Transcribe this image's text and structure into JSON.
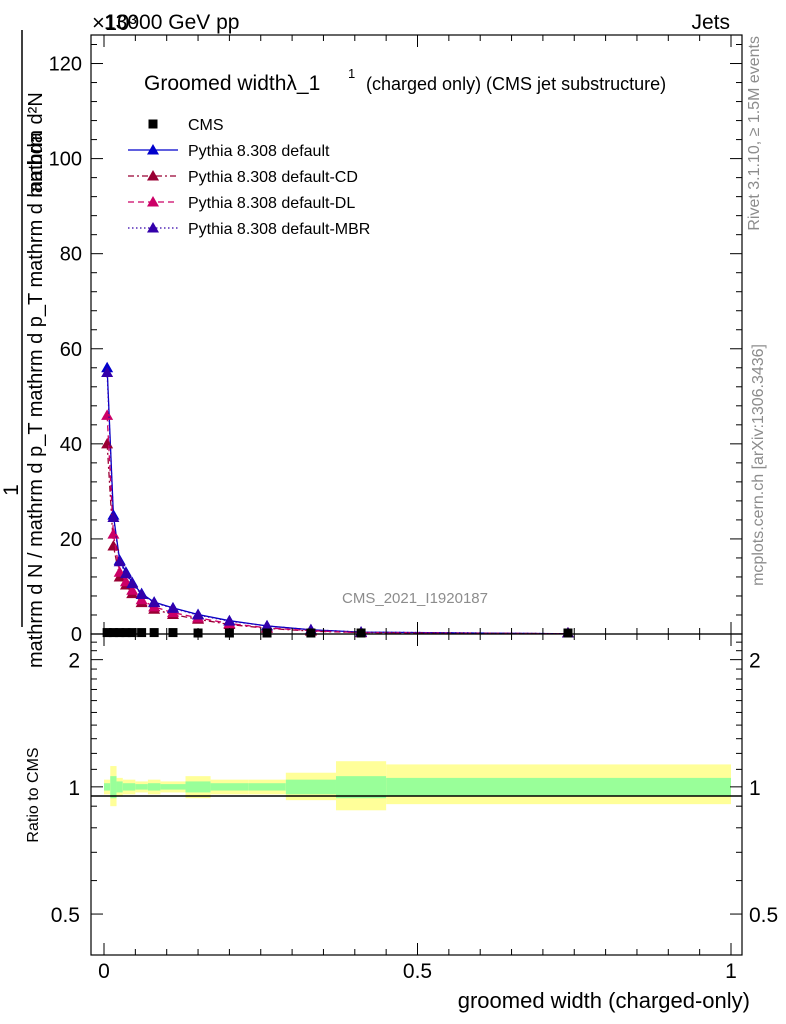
{
  "header": {
    "energy_label": "13000 GeV pp",
    "category_label": "Jets",
    "exponent_label": "×10³"
  },
  "side_text": {
    "rivet_label": "Rivet 3.1.10, ≥ 1.5M events",
    "mcplots_label": "mcplots.cern.ch [arXiv:1306.3436]"
  },
  "colors": {
    "data": "#000000",
    "default": "#0000cc",
    "default_cd": "#990033",
    "default_dl": "#cc0066",
    "default_mbr": "#3300aa",
    "band_stat": "#99ff99",
    "band_total": "#ffff99"
  },
  "chart_data": [
    {
      "type": "line",
      "title": "Groomed widthλ_1¹ (charged only) (CMS jet substructure)",
      "title_main": "Groomed widthλ_1",
      "title_sup": "1",
      "title_suffix": "(charged only) (CMS jet substructure)",
      "analysis_label": "CMS_2021_I1920187",
      "ylabel_numerator": "mathrm d²N",
      "ylabel_denominator": "mathrm d N / mathrm d p_T mathrm d p_T mathrm d lambda",
      "ylabel_prefix": "1",
      "xlim": [
        0,
        1
      ],
      "ylim": [
        0,
        126
      ],
      "yticks": [
        0,
        20,
        40,
        60,
        80,
        100,
        120
      ],
      "grid": false,
      "legend_position": "top-left",
      "series": [
        {
          "name": "CMS",
          "style": "data",
          "x": [
            0.005,
            0.015,
            0.025,
            0.035,
            0.045,
            0.06,
            0.08,
            0.11,
            0.15,
            0.2,
            0.26,
            0.33,
            0.41,
            0.74
          ],
          "y": [
            0.3,
            0.3,
            0.3,
            0.3,
            0.3,
            0.3,
            0.3,
            0.3,
            0.2,
            0.2,
            0.1,
            0.1,
            0.05,
            0.2
          ]
        },
        {
          "name": "Pythia 8.308 default",
          "style": "solid",
          "x": [
            0.005,
            0.015,
            0.025,
            0.035,
            0.045,
            0.06,
            0.08,
            0.11,
            0.15,
            0.2,
            0.26,
            0.33,
            0.41,
            0.74
          ],
          "y": [
            56,
            25,
            15.5,
            13,
            10.8,
            8.5,
            6.7,
            5.5,
            4.1,
            2.8,
            1.7,
            0.9,
            0.4,
            0.05
          ]
        },
        {
          "name": "Pythia 8.308 default-CD",
          "style": "dashdot",
          "x": [
            0.005,
            0.015,
            0.025,
            0.035,
            0.045,
            0.06,
            0.08,
            0.11,
            0.15,
            0.2,
            0.26,
            0.33,
            0.41,
            0.74
          ],
          "y": [
            40,
            18.5,
            12,
            10.3,
            8.5,
            6.6,
            5.2,
            4.1,
            3.1,
            2.0,
            1.2,
            0.6,
            0.3,
            0.05
          ]
        },
        {
          "name": "Pythia 8.308 default-DL",
          "style": "dashed",
          "x": [
            0.005,
            0.015,
            0.025,
            0.035,
            0.045,
            0.06,
            0.08,
            0.11,
            0.15,
            0.2,
            0.26,
            0.33,
            0.41,
            0.74
          ],
          "y": [
            46,
            21,
            13,
            11,
            9.2,
            7.2,
            5.7,
            4.5,
            3.4,
            2.2,
            1.3,
            0.7,
            0.3,
            0.05
          ]
        },
        {
          "name": "Pythia 8.308 default-MBR",
          "style": "dotted",
          "x": [
            0.005,
            0.015,
            0.025,
            0.035,
            0.045,
            0.06,
            0.08,
            0.11,
            0.15,
            0.2,
            0.26,
            0.33,
            0.41,
            0.74
          ],
          "y": [
            55,
            24.5,
            15.2,
            12.7,
            10.6,
            8.3,
            6.6,
            5.4,
            4.0,
            2.7,
            1.7,
            0.9,
            0.4,
            0.05
          ]
        }
      ]
    },
    {
      "type": "area",
      "ylabel": "Ratio to CMS",
      "xlabel": "groomed width (charged-only)",
      "xlim": [
        0,
        1
      ],
      "ylim": [
        0.4,
        2.3
      ],
      "yscale": "log",
      "yticks": [
        0.5,
        1,
        2
      ],
      "xticks": [
        0,
        0.5,
        1
      ],
      "reference_line": 1,
      "bands": [
        {
          "x0": 0.0,
          "x1": 0.01,
          "stat": [
            0.98,
            1.02
          ],
          "total": [
            0.96,
            1.04
          ]
        },
        {
          "x0": 0.01,
          "x1": 0.02,
          "stat": [
            0.94,
            1.06
          ],
          "total": [
            0.9,
            1.12
          ]
        },
        {
          "x0": 0.02,
          "x1": 0.03,
          "stat": [
            0.97,
            1.03
          ],
          "total": [
            0.95,
            1.05
          ]
        },
        {
          "x0": 0.03,
          "x1": 0.05,
          "stat": [
            0.98,
            1.02
          ],
          "total": [
            0.96,
            1.04
          ]
        },
        {
          "x0": 0.05,
          "x1": 0.07,
          "stat": [
            0.985,
            1.015
          ],
          "total": [
            0.97,
            1.03
          ]
        },
        {
          "x0": 0.07,
          "x1": 0.09,
          "stat": [
            0.98,
            1.02
          ],
          "total": [
            0.96,
            1.04
          ]
        },
        {
          "x0": 0.09,
          "x1": 0.13,
          "stat": [
            0.985,
            1.015
          ],
          "total": [
            0.97,
            1.03
          ]
        },
        {
          "x0": 0.13,
          "x1": 0.17,
          "stat": [
            0.97,
            1.03
          ],
          "total": [
            0.94,
            1.06
          ]
        },
        {
          "x0": 0.17,
          "x1": 0.23,
          "stat": [
            0.98,
            1.02
          ],
          "total": [
            0.96,
            1.04
          ]
        },
        {
          "x0": 0.23,
          "x1": 0.29,
          "stat": [
            0.98,
            1.02
          ],
          "total": [
            0.96,
            1.04
          ]
        },
        {
          "x0": 0.29,
          "x1": 0.37,
          "stat": [
            0.96,
            1.04
          ],
          "total": [
            0.93,
            1.08
          ]
        },
        {
          "x0": 0.37,
          "x1": 0.45,
          "stat": [
            0.94,
            1.06
          ],
          "total": [
            0.88,
            1.15
          ]
        },
        {
          "x0": 0.45,
          "x1": 1.0,
          "stat": [
            0.95,
            1.05
          ],
          "total": [
            0.91,
            1.13
          ]
        }
      ]
    }
  ]
}
